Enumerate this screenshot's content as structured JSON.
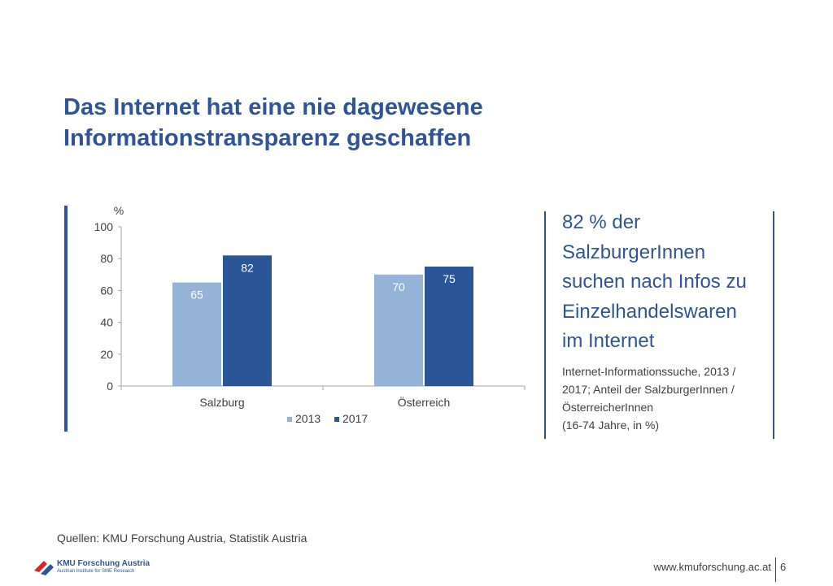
{
  "title": {
    "line1": "Das Internet hat eine nie dagewesene",
    "line2": "Informationstransparenz geschaffen"
  },
  "chart_data": {
    "type": "bar",
    "ylabel": "%",
    "ylim": [
      0,
      100
    ],
    "yticks": [
      "0",
      "20",
      "40",
      "60",
      "80",
      "100"
    ],
    "categories": [
      "Salzburg",
      "Österreich"
    ],
    "series": [
      {
        "name": "2013",
        "values": [
          65,
          70
        ],
        "color": "#95b3d7"
      },
      {
        "name": "2017",
        "values": [
          82,
          75
        ],
        "color": "#2a5698"
      }
    ],
    "legend_position": "bottom",
    "grid": false
  },
  "callout": {
    "lines": [
      "82 % der",
      "SalzburgerInnen",
      "suchen nach Infos zu",
      "Einzelhandelswaren",
      "im Internet"
    ]
  },
  "callout_sub": {
    "lines": [
      "Internet-Informationssuche, 2013 /",
      "2017; Anteil der SalzburgerInnen /",
      "ÖsterreicherInnen",
      "(16-74 Jahre, in %)"
    ]
  },
  "source": "Quellen: KMU Forschung Austria, Statistik Austria",
  "logo": {
    "title": "KMU Forschung Austria",
    "subtitle": "Austrian Institute for SME Research"
  },
  "footer": {
    "url": "www.kmuforschung.ac.at",
    "page": "6"
  },
  "colors": {
    "accent": "#2f5596",
    "logo_red": "#d7262e"
  }
}
